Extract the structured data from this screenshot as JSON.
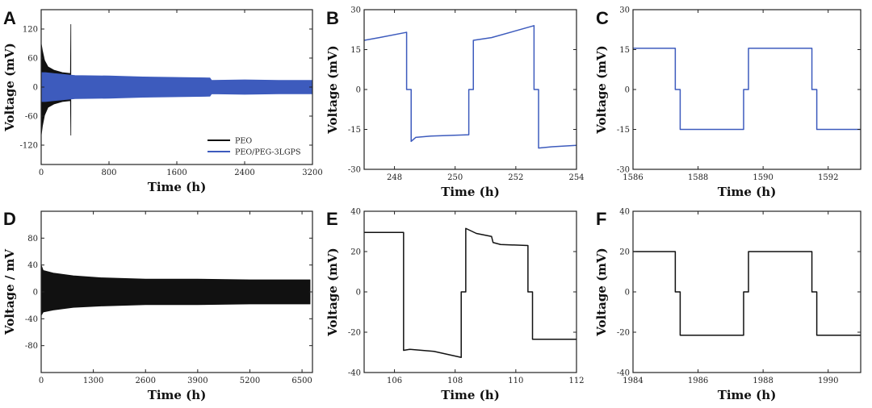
{
  "chart_data": [
    {
      "panel": "A",
      "type": "line",
      "xlabel": "Time (h)",
      "ylabel": "Voltage (mV)",
      "xlim": [
        0,
        3200
      ],
      "ylim": [
        -160,
        160
      ],
      "xticks": [
        0,
        800,
        1600,
        2400,
        3200
      ],
      "xtick_labels": [
        "0",
        "800",
        "1600",
        "2400",
        "3200"
      ],
      "yticks": [
        -120,
        -60,
        0,
        60,
        120
      ],
      "ytick_labels": [
        "-120",
        "-60",
        "0",
        "60",
        "120"
      ],
      "legend_position": "bottom-right",
      "series": [
        {
          "name": "PEO",
          "color": "#111111",
          "style": "envelope",
          "x": [
            0,
            15,
            40,
            80,
            150,
            250,
            345,
            350
          ],
          "upper": [
            90,
            75,
            55,
            42,
            35,
            30,
            28,
            130
          ],
          "lower": [
            -100,
            -80,
            -58,
            -42,
            -35,
            -30,
            -28,
            -100
          ]
        },
        {
          "name": "PEO/PEG-3LGPS",
          "color": "#3d5bbd",
          "style": "envelope",
          "x": [
            0,
            50,
            150,
            400,
            800,
            1200,
            1600,
            1990,
            2010,
            2400,
            2800,
            3200
          ],
          "upper": [
            30,
            30,
            28,
            24,
            23,
            21,
            20,
            19,
            14,
            15,
            14,
            14
          ],
          "lower": [
            -30,
            -30,
            -28,
            -24,
            -23,
            -21,
            -20,
            -19,
            -14,
            -15,
            -14,
            -14
          ]
        }
      ]
    },
    {
      "panel": "B",
      "type": "line",
      "xlabel": "Time (h)",
      "ylabel": "Voltage (mV)",
      "xlim": [
        247,
        254
      ],
      "ylim": [
        -30,
        30
      ],
      "xticks": [
        248,
        250,
        252,
        254
      ],
      "xtick_labels": [
        "248",
        "250",
        "252",
        "254"
      ],
      "yticks": [
        -30,
        -15,
        0,
        15,
        30
      ],
      "ytick_labels": [
        "-30",
        "-15",
        "0",
        "15",
        "30"
      ],
      "series": [
        {
          "name": "PEO/PEG-3LGPS",
          "color": "#3d5bbd",
          "x": [
            247,
            247.5,
            248.4,
            248.4,
            248.55,
            248.55,
            248.7,
            249.2,
            250.45,
            250.45,
            250.6,
            250.6,
            251.2,
            252.6,
            252.6,
            252.75,
            252.75,
            253.2,
            254
          ],
          "y": [
            18.5,
            19.5,
            21.5,
            0,
            0,
            -19.5,
            -18,
            -17.5,
            -17,
            0,
            0,
            18.5,
            19.5,
            24,
            0,
            0,
            -22,
            -21.5,
            -21
          ]
        }
      ]
    },
    {
      "panel": "C",
      "type": "line",
      "xlabel": "Time (h)",
      "ylabel": "Voltage (mV)",
      "xlim": [
        1586,
        1593
      ],
      "ylim": [
        -30,
        30
      ],
      "xticks": [
        1586,
        1588,
        1590,
        1592
      ],
      "xtick_labels": [
        "1586",
        "1588",
        "1590",
        "1592"
      ],
      "yticks": [
        -30,
        -15,
        0,
        15,
        30
      ],
      "ytick_labels": [
        "-30",
        "-15",
        "0",
        "15",
        "30"
      ],
      "series": [
        {
          "name": "PEO/PEG-3LGPS",
          "color": "#3d5bbd",
          "x": [
            1586,
            1587.3,
            1587.3,
            1587.45,
            1587.45,
            1589.4,
            1589.4,
            1589.55,
            1589.55,
            1591.5,
            1591.5,
            1591.65,
            1591.65,
            1593
          ],
          "y": [
            15.5,
            15.5,
            0,
            0,
            -15,
            -15,
            0,
            0,
            15.5,
            15.5,
            0,
            0,
            -15,
            -15
          ]
        }
      ]
    },
    {
      "panel": "D",
      "type": "line",
      "xlabel": "Time (h)",
      "ylabel": "Voltage / mV",
      "xlim": [
        0,
        6760
      ],
      "ylim": [
        -120,
        120
      ],
      "xticks": [
        0,
        1300,
        2600,
        3900,
        5200,
        6500
      ],
      "xtick_labels": [
        "0",
        "1300",
        "2600",
        "3900",
        "5200",
        "6500"
      ],
      "yticks": [
        -80,
        -40,
        0,
        40,
        80
      ],
      "ytick_labels": [
        "-80",
        "-40",
        "0",
        "40",
        "80"
      ],
      "series": [
        {
          "name": "PEO/PEG-3LGPS",
          "color": "#111111",
          "style": "envelope",
          "x": [
            0,
            50,
            300,
            800,
            1500,
            2600,
            3900,
            5200,
            6700
          ],
          "upper": [
            40,
            32,
            28,
            24,
            21,
            19,
            19,
            18,
            18
          ],
          "lower": [
            -35,
            -30,
            -27,
            -23,
            -21,
            -19,
            -19,
            -18,
            -18
          ]
        }
      ]
    },
    {
      "panel": "E",
      "type": "line",
      "xlabel": "Time (h)",
      "ylabel": "Voltage (mV)",
      "xlim": [
        105,
        112
      ],
      "ylim": [
        -40,
        40
      ],
      "xticks": [
        106,
        108,
        110,
        112
      ],
      "xtick_labels": [
        "106",
        "108",
        "110",
        "112"
      ],
      "yticks": [
        -40,
        -20,
        0,
        20,
        40
      ],
      "ytick_labels": [
        "-40",
        "-20",
        "0",
        "20",
        "40"
      ],
      "series": [
        {
          "name": "PEO/PEG-3LGPS",
          "color": "#111111",
          "x": [
            105,
            106.3,
            106.3,
            106.5,
            107.3,
            108.2,
            108.2,
            108.35,
            108.35,
            108.7,
            109.2,
            109.25,
            109.5,
            110.4,
            110.4,
            110.55,
            110.55,
            112
          ],
          "y": [
            29.5,
            29.5,
            -29,
            -28.5,
            -29.5,
            -32.5,
            0,
            0,
            31.5,
            29,
            27.5,
            24.5,
            23.5,
            23,
            0,
            0,
            -23.5,
            -23.5
          ]
        }
      ]
    },
    {
      "panel": "F",
      "type": "line",
      "xlabel": "Time (h)",
      "ylabel": "Voltage (mV)",
      "xlim": [
        1984,
        1991
      ],
      "ylim": [
        -40,
        40
      ],
      "xticks": [
        1984,
        1986,
        1988,
        1990
      ],
      "xtick_labels": [
        "1984",
        "1986",
        "1988",
        "1990"
      ],
      "yticks": [
        -40,
        -20,
        0,
        20,
        40
      ],
      "ytick_labels": [
        "-40",
        "-20",
        "0",
        "20",
        "40"
      ],
      "series": [
        {
          "name": "PEO/PEG-3LGPS",
          "color": "#111111",
          "x": [
            1984,
            1985.3,
            1985.3,
            1985.45,
            1985.45,
            1987.4,
            1987.4,
            1987.55,
            1987.55,
            1989.5,
            1989.5,
            1989.65,
            1989.65,
            1991
          ],
          "y": [
            20,
            20,
            0,
            0,
            -21.5,
            -21.5,
            0,
            0,
            20,
            20,
            0,
            0,
            -21.5,
            -21.5
          ]
        }
      ]
    }
  ]
}
